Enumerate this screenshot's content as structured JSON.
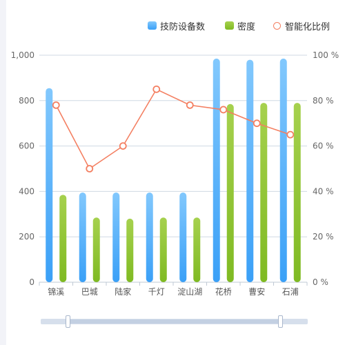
{
  "chart_data": {
    "type": "bar",
    "categories": [
      "锦溪",
      "巴城",
      "陆家",
      "千灯",
      "淀山湖",
      "花桥",
      "曹安",
      "石浦"
    ],
    "series": [
      {
        "name": "技防设备数",
        "type": "bar",
        "axis": "left",
        "color": "#3aa0f7",
        "color_top": "#82c8fd",
        "values": [
          855,
          395,
          395,
          395,
          395,
          985,
          980,
          985
        ]
      },
      {
        "name": "密度",
        "type": "bar",
        "axis": "left",
        "color": "#7fba22",
        "color_top": "#a6d14e",
        "values": [
          385,
          285,
          280,
          285,
          285,
          785,
          790,
          790
        ]
      },
      {
        "name": "智能化比例",
        "type": "line",
        "axis": "right",
        "color": "#f47f61",
        "values": [
          78,
          50,
          60,
          85,
          78,
          76,
          70,
          65
        ]
      }
    ],
    "y_left": {
      "min": 0,
      "max": 1000,
      "ticks": [
        "0",
        "200",
        "400",
        "600",
        "800",
        "1,000"
      ]
    },
    "y_right": {
      "min": 0,
      "max": 100,
      "ticks": [
        "0 %",
        "20 %",
        "40 %",
        "60 %",
        "80 %",
        "100 %"
      ]
    },
    "grid": true,
    "legend_position": "top-right"
  },
  "colors": {
    "grid": "#cfd8e3",
    "axis_text": "#666666"
  },
  "data_zoom": {
    "start": 0,
    "end": 100
  }
}
